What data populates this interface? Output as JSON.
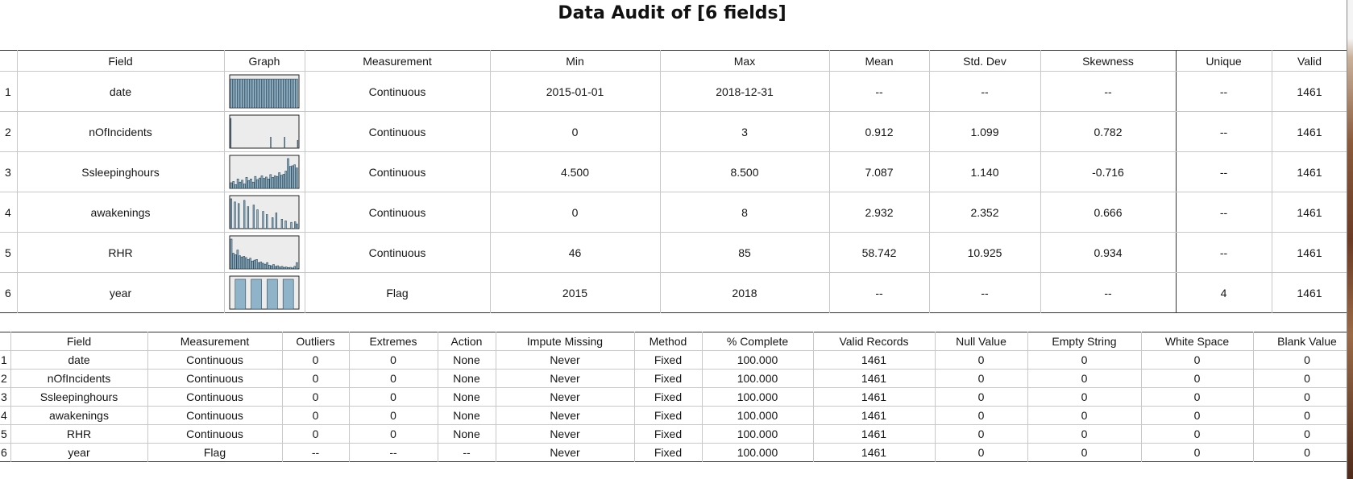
{
  "title": "Data Audit of [6 fields]",
  "audit": {
    "headers": [
      "",
      "Field",
      "Graph",
      "Measurement",
      "Min",
      "Max",
      "Mean",
      "Std. Dev",
      "Skewness",
      "Unique",
      "Valid"
    ],
    "rows": [
      {
        "n": "1",
        "field": "date",
        "graph_icon": "histogram-dense",
        "measurement": "Continuous",
        "min": "2015-01-01",
        "max": "2018-12-31",
        "mean": "--",
        "std": "--",
        "skew": "--",
        "unique": "--",
        "valid": "1461"
      },
      {
        "n": "2",
        "field": "nOfIncidents",
        "graph_icon": "histogram-sparse",
        "measurement": "Continuous",
        "min": "0",
        "max": "3",
        "mean": "0.912",
        "std": "1.099",
        "skew": "0.782",
        "unique": "--",
        "valid": "1461"
      },
      {
        "n": "3",
        "field": "Ssleepinghours",
        "graph_icon": "histogram-rising",
        "measurement": "Continuous",
        "min": "4.500",
        "max": "8.500",
        "mean": "7.087",
        "std": "1.140",
        "skew": "-0.716",
        "unique": "--",
        "valid": "1461"
      },
      {
        "n": "4",
        "field": "awakenings",
        "graph_icon": "histogram-spiky",
        "measurement": "Continuous",
        "min": "0",
        "max": "8",
        "mean": "2.932",
        "std": "2.352",
        "skew": "0.666",
        "unique": "--",
        "valid": "1461"
      },
      {
        "n": "5",
        "field": "RHR",
        "graph_icon": "histogram-decay",
        "measurement": "Continuous",
        "min": "46",
        "max": "85",
        "mean": "58.742",
        "std": "10.925",
        "skew": "0.934",
        "unique": "--",
        "valid": "1461"
      },
      {
        "n": "6",
        "field": "year",
        "graph_icon": "histogram-four-bars",
        "measurement": "Flag",
        "min": "2015",
        "max": "2018",
        "mean": "--",
        "std": "--",
        "skew": "--",
        "unique": "4",
        "valid": "1461"
      }
    ]
  },
  "quality": {
    "headers": [
      "",
      "Field",
      "Measurement",
      "Outliers",
      "Extremes",
      "Action",
      "Impute Missing",
      "Method",
      "% Complete",
      "Valid Records",
      "Null Value",
      "Empty String",
      "White Space",
      "Blank Value"
    ],
    "rows": [
      [
        "1",
        "date",
        "Continuous",
        "0",
        "0",
        "None",
        "Never",
        "Fixed",
        "100.000",
        "1461",
        "0",
        "0",
        "0",
        "0"
      ],
      [
        "2",
        "nOfIncidents",
        "Continuous",
        "0",
        "0",
        "None",
        "Never",
        "Fixed",
        "100.000",
        "1461",
        "0",
        "0",
        "0",
        "0"
      ],
      [
        "3",
        "Ssleepinghours",
        "Continuous",
        "0",
        "0",
        "None",
        "Never",
        "Fixed",
        "100.000",
        "1461",
        "0",
        "0",
        "0",
        "0"
      ],
      [
        "4",
        "awakenings",
        "Continuous",
        "0",
        "0",
        "None",
        "Never",
        "Fixed",
        "100.000",
        "1461",
        "0",
        "0",
        "0",
        "0"
      ],
      [
        "5",
        "RHR",
        "Continuous",
        "0",
        "0",
        "None",
        "Never",
        "Fixed",
        "100.000",
        "1461",
        "0",
        "0",
        "0",
        "0"
      ],
      [
        "6",
        "year",
        "Flag",
        "--",
        "--",
        "--",
        "Never",
        "Fixed",
        "100.000",
        "1461",
        "0",
        "0",
        "0",
        "0"
      ]
    ]
  },
  "colors": {
    "bar_fill": "#8fb3c8",
    "bar_stroke": "#2f4756",
    "graph_bg": "#ececec"
  }
}
